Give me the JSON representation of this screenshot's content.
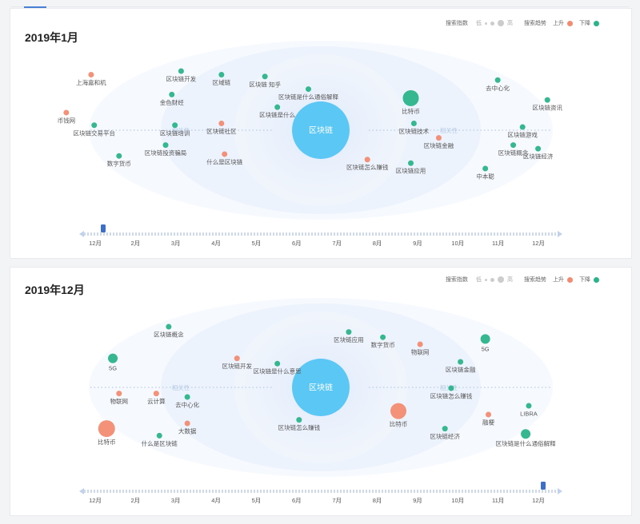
{
  "legend": {
    "index_label": "搜索指数",
    "low": "低",
    "high": "高",
    "trend_label": "搜索趋势",
    "up": "上升",
    "down": "下降"
  },
  "colors": {
    "up": "#f28b72",
    "down": "#2bb38a",
    "center": "#5bc7f5",
    "timeline": "#c6d6ee",
    "marker": "#3d6fc6"
  },
  "months": [
    "12月",
    "2月",
    "3月",
    "4月",
    "5月",
    "6月",
    "7月",
    "8月",
    "9月",
    "10月",
    "11月",
    "12月"
  ],
  "panels": [
    {
      "title": "2019年1月",
      "center": "区块链",
      "ring_labels": [
        {
          "text": "相关性",
          "side": "left"
        },
        {
          "text": "相关性",
          "side": "right"
        }
      ],
      "marker": "start",
      "nodes": [
        {
          "label": "上海嘉和机",
          "trend": "up",
          "size": "s",
          "col": 0.13,
          "row": 0.25
        },
        {
          "label": "区块链开发",
          "trend": "down",
          "size": "s",
          "col": 0.275,
          "row": 0.23
        },
        {
          "label": "区域链",
          "trend": "down",
          "size": "s",
          "col": 0.34,
          "row": 0.25
        },
        {
          "label": "区块链 知乎",
          "trend": "down",
          "size": "s",
          "col": 0.41,
          "row": 0.26
        },
        {
          "label": "去中心化",
          "trend": "down",
          "size": "s",
          "col": 0.785,
          "row": 0.28
        },
        {
          "label": "金色财经",
          "trend": "down",
          "size": "s",
          "col": 0.26,
          "row": 0.36
        },
        {
          "label": "区块链是什么通俗解释",
          "trend": "down",
          "size": "s",
          "col": 0.48,
          "row": 0.33
        },
        {
          "label": "比特币",
          "trend": "down",
          "size": "l",
          "col": 0.645,
          "row": 0.38
        },
        {
          "label": "区块链资讯",
          "trend": "down",
          "size": "s",
          "col": 0.865,
          "row": 0.39
        },
        {
          "label": "币钱网",
          "trend": "up",
          "size": "s",
          "col": 0.09,
          "row": 0.46
        },
        {
          "label": "区块链是什么",
          "trend": "down",
          "size": "s",
          "col": 0.43,
          "row": 0.43
        },
        {
          "label": "区块链交易平台",
          "trend": "down",
          "size": "s",
          "col": 0.135,
          "row": 0.53
        },
        {
          "label": "区块链培训",
          "trend": "down",
          "size": "s",
          "col": 0.265,
          "row": 0.53
        },
        {
          "label": "区块链社区",
          "trend": "up",
          "size": "s",
          "col": 0.34,
          "row": 0.52
        },
        {
          "label": "区块链技术",
          "trend": "down",
          "size": "s",
          "col": 0.65,
          "row": 0.52
        },
        {
          "label": "区块链游戏",
          "trend": "down",
          "size": "s",
          "col": 0.825,
          "row": 0.54
        },
        {
          "label": "区块链金融",
          "trend": "up",
          "size": "s",
          "col": 0.69,
          "row": 0.6
        },
        {
          "label": "区块链投资骗局",
          "trend": "down",
          "size": "s",
          "col": 0.25,
          "row": 0.64
        },
        {
          "label": "区块链概念",
          "trend": "down",
          "size": "s",
          "col": 0.81,
          "row": 0.64
        },
        {
          "label": "区块链经济",
          "trend": "down",
          "size": "s",
          "col": 0.85,
          "row": 0.66
        },
        {
          "label": "数字货币",
          "trend": "down",
          "size": "s",
          "col": 0.175,
          "row": 0.7
        },
        {
          "label": "什么是区块链",
          "trend": "up",
          "size": "s",
          "col": 0.345,
          "row": 0.69
        },
        {
          "label": "区块链怎么赚钱",
          "trend": "up",
          "size": "s",
          "col": 0.575,
          "row": 0.72
        },
        {
          "label": "区块链应用",
          "trend": "down",
          "size": "s",
          "col": 0.645,
          "row": 0.74
        },
        {
          "label": "中本聪",
          "trend": "down",
          "size": "s",
          "col": 0.765,
          "row": 0.77
        }
      ]
    },
    {
      "title": "2019年12月",
      "center": "区块链",
      "ring_labels": [
        {
          "text": "相关性",
          "side": "left"
        },
        {
          "text": "相关性",
          "side": "right"
        }
      ],
      "marker": "end",
      "nodes": [
        {
          "label": "区块链概念",
          "trend": "down",
          "size": "s",
          "col": 0.255,
          "row": 0.2
        },
        {
          "label": "区块链应用",
          "trend": "down",
          "size": "s",
          "col": 0.545,
          "row": 0.23
        },
        {
          "label": "数字货币",
          "trend": "down",
          "size": "s",
          "col": 0.6,
          "row": 0.26
        },
        {
          "label": "5G",
          "trend": "down",
          "size": "m",
          "col": 0.765,
          "row": 0.27
        },
        {
          "label": "物联网",
          "trend": "up",
          "size": "s",
          "col": 0.66,
          "row": 0.3
        },
        {
          "label": "5G",
          "trend": "down",
          "size": "m",
          "col": 0.165,
          "row": 0.38
        },
        {
          "label": "区块链开发",
          "trend": "up",
          "size": "s",
          "col": 0.365,
          "row": 0.38
        },
        {
          "label": "区块链是什么意思",
          "trend": "down",
          "size": "s",
          "col": 0.43,
          "row": 0.41
        },
        {
          "label": "区块链金融",
          "trend": "down",
          "size": "s",
          "col": 0.725,
          "row": 0.4
        },
        {
          "label": "区块链怎么赚钱",
          "trend": "down",
          "size": "s",
          "col": 0.71,
          "row": 0.55
        },
        {
          "label": "物联网",
          "trend": "up",
          "size": "s",
          "col": 0.175,
          "row": 0.58
        },
        {
          "label": "云计算",
          "trend": "up",
          "size": "s",
          "col": 0.235,
          "row": 0.58
        },
        {
          "label": "去中心化",
          "trend": "down",
          "size": "s",
          "col": 0.285,
          "row": 0.6
        },
        {
          "label": "比特币",
          "trend": "up",
          "size": "l",
          "col": 0.625,
          "row": 0.68
        },
        {
          "label": "LIBRA",
          "trend": "down",
          "size": "s",
          "col": 0.835,
          "row": 0.65
        },
        {
          "label": "融梗",
          "trend": "up",
          "size": "s",
          "col": 0.77,
          "row": 0.7
        },
        {
          "label": "区块链怎么赚钱",
          "trend": "down",
          "size": "s",
          "col": 0.465,
          "row": 0.73
        },
        {
          "label": "大数据",
          "trend": "up",
          "size": "s",
          "col": 0.285,
          "row": 0.75
        },
        {
          "label": "比特币",
          "trend": "up",
          "size": "xl",
          "col": 0.155,
          "row": 0.78
        },
        {
          "label": "区块链经济",
          "trend": "down",
          "size": "s",
          "col": 0.7,
          "row": 0.78
        },
        {
          "label": "什么是区块链",
          "trend": "down",
          "size": "s",
          "col": 0.24,
          "row": 0.82
        },
        {
          "label": "区块链是什么通俗解释",
          "trend": "down",
          "size": "m",
          "col": 0.83,
          "row": 0.81
        }
      ]
    }
  ]
}
